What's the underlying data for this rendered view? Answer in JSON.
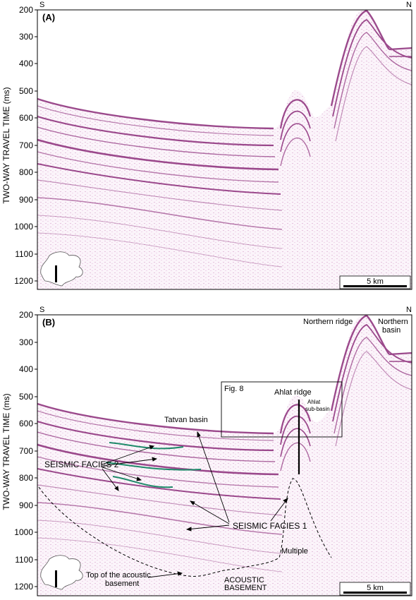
{
  "axis_label": "TWO-WAY TRAVEL TIME (ms)",
  "y_ticks": [
    "200",
    "300",
    "400",
    "500",
    "600",
    "700",
    "800",
    "900",
    "1000",
    "1100",
    "1200"
  ],
  "scale_bar": "5 km",
  "colors": {
    "seismic": "#8a2a78",
    "facies2_trace": "#1f8a6a",
    "frame": "#000000"
  },
  "panel_a": {
    "label": "(A)",
    "left_end": "S",
    "right_end": "N"
  },
  "panel_b": {
    "label": "(B)",
    "left_end": "S",
    "right_end": "N",
    "annotations": {
      "northern_ridge": "Northern ridge",
      "northern_basin_1": "Northern",
      "northern_basin_2": "basin",
      "fig8": "Fig. 8",
      "ahlat_ridge": "Ahlat ridge",
      "ahlat_sub_1": "Ahlat",
      "ahlat_sub_2": "sub-basin",
      "tatvan_basin": "Tatvan basin",
      "seismic_facies_2": "SEISMIC FACIES 2",
      "seismic_facies_1": "SEISMIC FACIES 1",
      "multiple": "Multiple",
      "top_acoustic_1": "Top of the acoustic",
      "top_acoustic_2": "basement",
      "acoustic_basement_1": "ACOUSTIC",
      "acoustic_basement_2": "BASEMENT"
    }
  }
}
